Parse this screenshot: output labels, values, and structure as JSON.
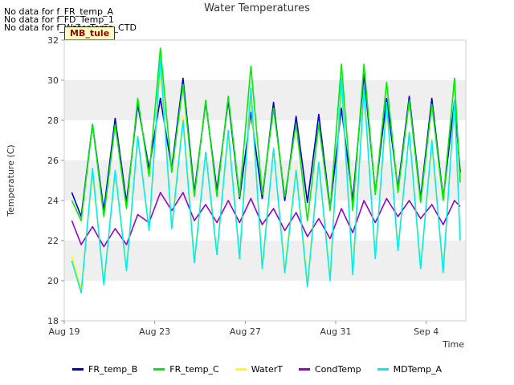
{
  "notes": [
    "No data for f_FR_temp_A",
    "No data for f_FD_Temp_1",
    "No data for f_WaterTemp_CTD"
  ],
  "badge": "MB_tule",
  "chart_data": {
    "type": "line",
    "title": "Water Temperatures",
    "xlabel": "Time",
    "ylabel": "Temperature (C)",
    "ylim": [
      18,
      32
    ],
    "xlim": [
      "2022-08-19",
      "2022-09-05T18:00"
    ],
    "yticks": [
      18,
      20,
      22,
      24,
      26,
      28,
      30,
      32
    ],
    "xticks": [
      "Aug 19",
      "Aug 23",
      "Aug 27",
      "Aug 31",
      "Sep 4"
    ],
    "grid": "horizontal bands",
    "legend_position": "bottom",
    "series": [
      {
        "name": "FR_temp_B",
        "color": "#0000cc",
        "x": [
          "2022-08-19T08",
          "2022-08-19T18",
          "2022-08-20T06",
          "2022-08-20T18",
          "2022-08-21T06",
          "2022-08-21T18",
          "2022-08-22T06",
          "2022-08-22T18",
          "2022-08-23T06",
          "2022-08-23T18",
          "2022-08-24T06",
          "2022-08-24T18",
          "2022-08-25T06",
          "2022-08-25T18",
          "2022-08-26T06",
          "2022-08-26T18",
          "2022-08-27T06",
          "2022-08-27T18",
          "2022-08-28T06",
          "2022-08-28T18",
          "2022-08-29T06",
          "2022-08-29T18",
          "2022-08-30T06",
          "2022-08-30T18",
          "2022-08-31T06",
          "2022-08-31T18",
          "2022-09-01T06",
          "2022-09-01T18",
          "2022-09-02T06",
          "2022-09-02T18",
          "2022-09-03T06",
          "2022-09-03T18",
          "2022-09-04T06",
          "2022-09-04T18",
          "2022-09-05T06",
          "2022-09-05T12"
        ],
        "y": [
          24.4,
          23.2,
          27.8,
          23.5,
          28.1,
          23.9,
          28.8,
          25.6,
          29.1,
          25.6,
          30.1,
          24.4,
          28.9,
          24.5,
          29.0,
          24.1,
          28.4,
          24.1,
          28.9,
          24.0,
          28.2,
          23.9,
          28.3,
          23.6,
          28.6,
          24.0,
          30.3,
          24.4,
          29.1,
          24.6,
          29.2,
          24.1,
          29.1,
          24.1,
          29.0,
          25.4
        ]
      },
      {
        "name": "FR_temp_C",
        "color": "#00ee00",
        "x": [
          "2022-08-19T08",
          "2022-08-19T18",
          "2022-08-20T06",
          "2022-08-20T18",
          "2022-08-21T06",
          "2022-08-21T18",
          "2022-08-22T06",
          "2022-08-22T18",
          "2022-08-23T06",
          "2022-08-23T18",
          "2022-08-24T06",
          "2022-08-24T18",
          "2022-08-25T06",
          "2022-08-25T18",
          "2022-08-26T06",
          "2022-08-26T18",
          "2022-08-27T06",
          "2022-08-27T18",
          "2022-08-28T06",
          "2022-08-28T18",
          "2022-08-29T06",
          "2022-08-29T18",
          "2022-08-30T06",
          "2022-08-30T18",
          "2022-08-31T06",
          "2022-08-31T18",
          "2022-09-01T06",
          "2022-09-01T18",
          "2022-09-02T06",
          "2022-09-02T18",
          "2022-09-03T06",
          "2022-09-03T18",
          "2022-09-04T06",
          "2022-09-04T18",
          "2022-09-05T06",
          "2022-09-05T12"
        ],
        "y": [
          24.0,
          23.0,
          27.8,
          23.2,
          27.8,
          23.6,
          29.1,
          25.2,
          31.6,
          25.4,
          29.8,
          24.2,
          29.0,
          24.2,
          29.2,
          24.2,
          30.7,
          24.3,
          28.6,
          24.2,
          27.8,
          23.0,
          27.8,
          23.5,
          30.8,
          23.5,
          30.8,
          24.3,
          29.9,
          24.4,
          29.0,
          23.9,
          28.8,
          24.0,
          30.1,
          24.9
        ]
      },
      {
        "name": "WaterT",
        "color": "#ffff00",
        "x": [
          "2022-08-19T08",
          "2022-08-19T18",
          "2022-08-20T06",
          "2022-08-20T18",
          "2022-08-21T06",
          "2022-08-21T18",
          "2022-08-22T06",
          "2022-08-22T18",
          "2022-08-23T06",
          "2022-08-23T18",
          "2022-08-24T06",
          "2022-08-24T18",
          "2022-08-25T06",
          "2022-08-25T18",
          "2022-08-26T06",
          "2022-08-26T18",
          "2022-08-27T06",
          "2022-08-27T18",
          "2022-08-28T06",
          "2022-08-28T18",
          "2022-08-29T06",
          "2022-08-29T18",
          "2022-08-30T06",
          "2022-08-30T18",
          "2022-08-31T06",
          "2022-08-31T18",
          "2022-09-01T06",
          "2022-09-01T18",
          "2022-09-02T06",
          "2022-09-02T18",
          "2022-09-03T06",
          "2022-09-03T18",
          "2022-09-04T06",
          "2022-09-04T18",
          "2022-09-05T06",
          "2022-09-05T12"
        ],
        "y": [
          21.2,
          19.6,
          25.4,
          19.9,
          25.4,
          20.6,
          27.2,
          22.6,
          30.8,
          22.7,
          28.2,
          21.0,
          26.4,
          21.4,
          27.3,
          21.2,
          29.2,
          20.8,
          26.5,
          20.6,
          25.6,
          19.9,
          25.9,
          20.2,
          29.8,
          20.5,
          29.4,
          21.2,
          28.7,
          21.6,
          27.4,
          20.7,
          26.8,
          20.5,
          28.9,
          22.0
        ]
      },
      {
        "name": "CondTemp",
        "color": "#9900cc",
        "x": [
          "2022-08-19T08",
          "2022-08-19T18",
          "2022-08-20T06",
          "2022-08-20T18",
          "2022-08-21T06",
          "2022-08-21T18",
          "2022-08-22T06",
          "2022-08-22T18",
          "2022-08-23T06",
          "2022-08-23T18",
          "2022-08-24T06",
          "2022-08-24T18",
          "2022-08-25T06",
          "2022-08-25T18",
          "2022-08-26T06",
          "2022-08-26T18",
          "2022-08-27T06",
          "2022-08-27T18",
          "2022-08-28T06",
          "2022-08-28T18",
          "2022-08-29T06",
          "2022-08-29T18",
          "2022-08-30T06",
          "2022-08-30T18",
          "2022-08-31T06",
          "2022-08-31T18",
          "2022-09-01T06",
          "2022-09-01T18",
          "2022-09-02T06",
          "2022-09-02T18",
          "2022-09-03T06",
          "2022-09-03T18",
          "2022-09-04T06",
          "2022-09-04T18",
          "2022-09-05T06",
          "2022-09-05T12"
        ],
        "y": [
          23.0,
          21.8,
          22.7,
          21.7,
          22.6,
          21.8,
          23.3,
          22.9,
          24.4,
          23.5,
          24.4,
          23.0,
          23.8,
          22.9,
          24.0,
          22.9,
          24.1,
          22.8,
          23.6,
          22.5,
          23.4,
          22.2,
          23.1,
          22.1,
          23.6,
          22.4,
          24.0,
          22.9,
          24.1,
          23.2,
          24.0,
          23.1,
          23.8,
          22.8,
          24.0,
          23.7
        ]
      },
      {
        "name": "MDTemp_A",
        "color": "#00eeee",
        "x": [
          "2022-08-19T08",
          "2022-08-19T18",
          "2022-08-20T06",
          "2022-08-20T18",
          "2022-08-21T06",
          "2022-08-21T18",
          "2022-08-22T06",
          "2022-08-22T18",
          "2022-08-23T06",
          "2022-08-23T18",
          "2022-08-24T06",
          "2022-08-24T18",
          "2022-08-25T06",
          "2022-08-25T18",
          "2022-08-26T06",
          "2022-08-26T18",
          "2022-08-27T06",
          "2022-08-27T18",
          "2022-08-28T06",
          "2022-08-28T18",
          "2022-08-29T06",
          "2022-08-29T18",
          "2022-08-30T06",
          "2022-08-30T18",
          "2022-08-31T06",
          "2022-08-31T18",
          "2022-09-01T06",
          "2022-09-01T18",
          "2022-09-02T06",
          "2022-09-02T18",
          "2022-09-03T06",
          "2022-09-03T18",
          "2022-09-04T06",
          "2022-09-04T18",
          "2022-09-05T06",
          "2022-09-05T12"
        ],
        "y": [
          21.0,
          19.4,
          25.6,
          19.8,
          25.5,
          20.5,
          27.2,
          22.5,
          31.1,
          22.6,
          28.0,
          20.9,
          26.4,
          21.3,
          27.5,
          21.1,
          29.6,
          20.6,
          26.6,
          20.4,
          25.5,
          19.7,
          25.9,
          20.0,
          30.1,
          20.3,
          29.6,
          21.1,
          28.9,
          21.5,
          27.4,
          20.6,
          27.0,
          20.4,
          29.0,
          22.0
        ]
      }
    ]
  }
}
